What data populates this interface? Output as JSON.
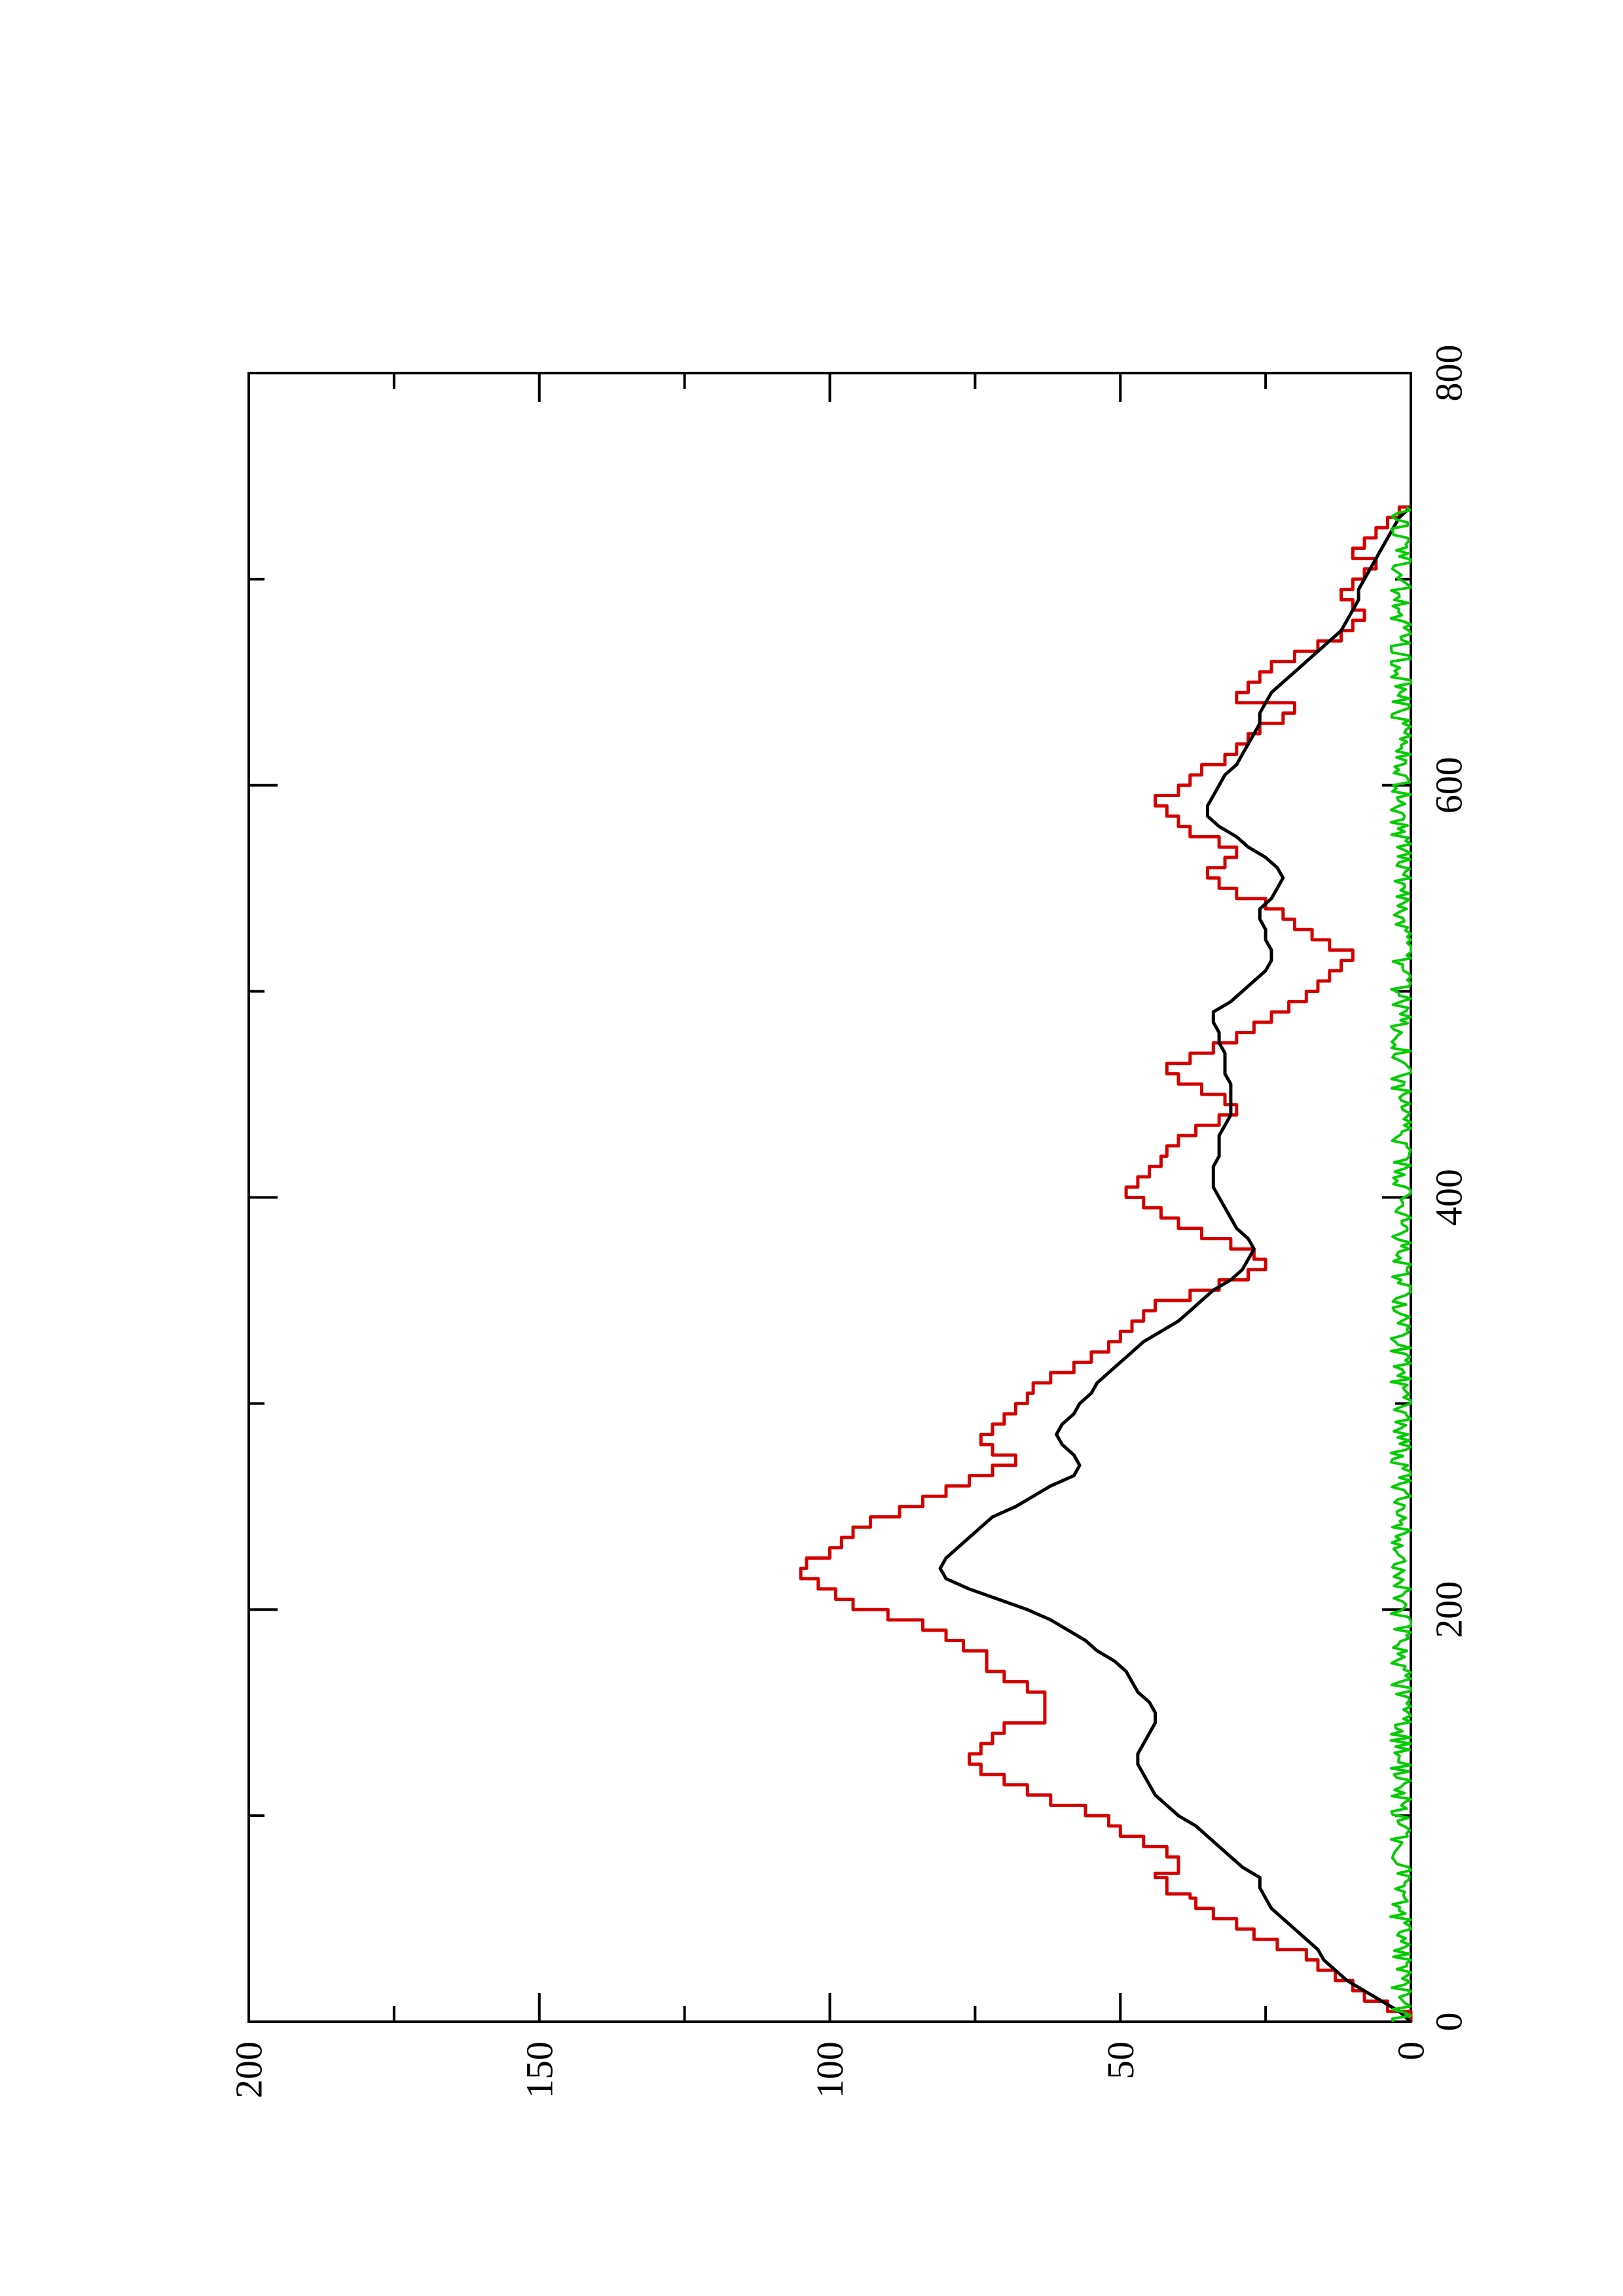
{
  "chart_data": {
    "type": "line",
    "title": "",
    "xlabel": "",
    "ylabel": "",
    "orientation": "rotated-90-ccw",
    "xlim": [
      0,
      800
    ],
    "ylim": [
      0,
      200
    ],
    "x_ticks": [
      0,
      200,
      400,
      600,
      800
    ],
    "x_tick_labels": [
      "0",
      "200",
      "400",
      "600",
      "800"
    ],
    "x_minor_ticks": [
      100,
      300,
      500,
      700
    ],
    "y_ticks": [
      0,
      50,
      100,
      150,
      200
    ],
    "y_tick_labels": [
      "0",
      "50",
      "100",
      "150",
      "200"
    ],
    "y_minor_ticks": [
      25,
      75,
      125,
      175
    ],
    "grid": false,
    "legend": "none",
    "series": [
      {
        "color": "#d40000",
        "style": "step",
        "points": [
          [
            0,
            0
          ],
          [
            5,
            4
          ],
          [
            10,
            8
          ],
          [
            15,
            10
          ],
          [
            20,
            13
          ],
          [
            25,
            16
          ],
          [
            30,
            18
          ],
          [
            35,
            23
          ],
          [
            40,
            27
          ],
          [
            45,
            30
          ],
          [
            50,
            34
          ],
          [
            55,
            37
          ],
          [
            60,
            38
          ],
          [
            62,
            42
          ],
          [
            70,
            44
          ],
          [
            72,
            40
          ],
          [
            80,
            42
          ],
          [
            85,
            46
          ],
          [
            90,
            50
          ],
          [
            95,
            52
          ],
          [
            100,
            56
          ],
          [
            105,
            62
          ],
          [
            110,
            66
          ],
          [
            115,
            70
          ],
          [
            120,
            74
          ],
          [
            125,
            76
          ],
          [
            130,
            74
          ],
          [
            135,
            72
          ],
          [
            140,
            70
          ],
          [
            145,
            63
          ],
          [
            150,
            63
          ],
          [
            155,
            63
          ],
          [
            160,
            66
          ],
          [
            165,
            70
          ],
          [
            170,
            73
          ],
          [
            175,
            73
          ],
          [
            180,
            77
          ],
          [
            185,
            80
          ],
          [
            190,
            84
          ],
          [
            195,
            90
          ],
          [
            200,
            96
          ],
          [
            205,
            99
          ],
          [
            210,
            102
          ],
          [
            215,
            105
          ],
          [
            220,
            104
          ],
          [
            225,
            100
          ],
          [
            230,
            98
          ],
          [
            235,
            96
          ],
          [
            240,
            93
          ],
          [
            245,
            88
          ],
          [
            250,
            84
          ],
          [
            255,
            80
          ],
          [
            260,
            76
          ],
          [
            265,
            72
          ],
          [
            270,
            68
          ],
          [
            275,
            72
          ],
          [
            280,
            74
          ],
          [
            285,
            72
          ],
          [
            290,
            70
          ],
          [
            295,
            68
          ],
          [
            300,
            66
          ],
          [
            305,
            65
          ],
          [
            310,
            62
          ],
          [
            315,
            58
          ],
          [
            320,
            55
          ],
          [
            325,
            52
          ],
          [
            330,
            50
          ],
          [
            335,
            48
          ],
          [
            340,
            46
          ],
          [
            345,
            44
          ],
          [
            350,
            38
          ],
          [
            355,
            33
          ],
          [
            360,
            28
          ],
          [
            365,
            25
          ],
          [
            370,
            27
          ],
          [
            375,
            31
          ],
          [
            380,
            36
          ],
          [
            385,
            40
          ],
          [
            390,
            43
          ],
          [
            395,
            46
          ],
          [
            400,
            49
          ],
          [
            405,
            47
          ],
          [
            410,
            45
          ],
          [
            415,
            43
          ],
          [
            420,
            42
          ],
          [
            425,
            40
          ],
          [
            430,
            37
          ],
          [
            435,
            33
          ],
          [
            440,
            30
          ],
          [
            445,
            32
          ],
          [
            450,
            36
          ],
          [
            455,
            40
          ],
          [
            460,
            42
          ],
          [
            465,
            38
          ],
          [
            470,
            34
          ],
          [
            475,
            30
          ],
          [
            480,
            27
          ],
          [
            485,
            24
          ],
          [
            490,
            21
          ],
          [
            495,
            18
          ],
          [
            500,
            16
          ],
          [
            505,
            14
          ],
          [
            510,
            12
          ],
          [
            515,
            10
          ],
          [
            520,
            14
          ],
          [
            525,
            17
          ],
          [
            530,
            20
          ],
          [
            535,
            22
          ],
          [
            540,
            25
          ],
          [
            545,
            30
          ],
          [
            550,
            33
          ],
          [
            555,
            35
          ],
          [
            560,
            32
          ],
          [
            565,
            30
          ],
          [
            570,
            33
          ],
          [
            575,
            38
          ],
          [
            580,
            40
          ],
          [
            585,
            42
          ],
          [
            590,
            44
          ],
          [
            595,
            40
          ],
          [
            600,
            38
          ],
          [
            605,
            36
          ],
          [
            610,
            32
          ],
          [
            615,
            30
          ],
          [
            620,
            28
          ],
          [
            625,
            26
          ],
          [
            630,
            22
          ],
          [
            635,
            20
          ],
          [
            640,
            30
          ],
          [
            645,
            28
          ],
          [
            650,
            26
          ],
          [
            655,
            24
          ],
          [
            660,
            20
          ],
          [
            665,
            16
          ],
          [
            670,
            12
          ],
          [
            675,
            10
          ],
          [
            680,
            8
          ],
          [
            685,
            10
          ],
          [
            690,
            12
          ],
          [
            695,
            10
          ],
          [
            700,
            8
          ],
          [
            705,
            6
          ],
          [
            710,
            10
          ],
          [
            715,
            8
          ],
          [
            720,
            6
          ],
          [
            725,
            4
          ],
          [
            730,
            2
          ],
          [
            735,
            0
          ]
        ]
      },
      {
        "color": "#000000",
        "style": "line",
        "points": [
          [
            0,
            0
          ],
          [
            5,
            2
          ],
          [
            10,
            5
          ],
          [
            15,
            8
          ],
          [
            20,
            11
          ],
          [
            25,
            13
          ],
          [
            30,
            15
          ],
          [
            35,
            16
          ],
          [
            40,
            18
          ],
          [
            45,
            20
          ],
          [
            50,
            22
          ],
          [
            55,
            24
          ],
          [
            60,
            25
          ],
          [
            65,
            26
          ],
          [
            70,
            26
          ],
          [
            75,
            29
          ],
          [
            80,
            31
          ],
          [
            85,
            33
          ],
          [
            90,
            35
          ],
          [
            95,
            37
          ],
          [
            100,
            40
          ],
          [
            105,
            42
          ],
          [
            110,
            44
          ],
          [
            115,
            45
          ],
          [
            120,
            46
          ],
          [
            125,
            47
          ],
          [
            130,
            47
          ],
          [
            135,
            46
          ],
          [
            140,
            45
          ],
          [
            145,
            44
          ],
          [
            150,
            44
          ],
          [
            155,
            45
          ],
          [
            160,
            47
          ],
          [
            165,
            48
          ],
          [
            170,
            49
          ],
          [
            175,
            51
          ],
          [
            180,
            54
          ],
          [
            185,
            56
          ],
          [
            190,
            59
          ],
          [
            195,
            62
          ],
          [
            200,
            66
          ],
          [
            205,
            71
          ],
          [
            210,
            76
          ],
          [
            215,
            80
          ],
          [
            220,
            81
          ],
          [
            225,
            80
          ],
          [
            230,
            78
          ],
          [
            235,
            76
          ],
          [
            240,
            74
          ],
          [
            245,
            72
          ],
          [
            250,
            68
          ],
          [
            255,
            65
          ],
          [
            260,
            62
          ],
          [
            265,
            58
          ],
          [
            270,
            57
          ],
          [
            275,
            58
          ],
          [
            280,
            60
          ],
          [
            285,
            61
          ],
          [
            290,
            60
          ],
          [
            295,
            58
          ],
          [
            300,
            57
          ],
          [
            305,
            55
          ],
          [
            310,
            54
          ],
          [
            315,
            52
          ],
          [
            320,
            50
          ],
          [
            325,
            48
          ],
          [
            330,
            46
          ],
          [
            335,
            43
          ],
          [
            340,
            40
          ],
          [
            345,
            38
          ],
          [
            350,
            36
          ],
          [
            355,
            34
          ],
          [
            360,
            31
          ],
          [
            365,
            29
          ],
          [
            370,
            28
          ],
          [
            375,
            27
          ],
          [
            380,
            28
          ],
          [
            385,
            30
          ],
          [
            390,
            31
          ],
          [
            395,
            32
          ],
          [
            400,
            33
          ],
          [
            405,
            34
          ],
          [
            410,
            34
          ],
          [
            415,
            34
          ],
          [
            420,
            33
          ],
          [
            425,
            33
          ],
          [
            430,
            33
          ],
          [
            435,
            32
          ],
          [
            440,
            31
          ],
          [
            445,
            31
          ],
          [
            450,
            31
          ],
          [
            455,
            31
          ],
          [
            460,
            32
          ],
          [
            465,
            32
          ],
          [
            470,
            32
          ],
          [
            475,
            33
          ],
          [
            480,
            33
          ],
          [
            485,
            34
          ],
          [
            490,
            34
          ],
          [
            495,
            31
          ],
          [
            500,
            29
          ],
          [
            505,
            27
          ],
          [
            510,
            25
          ],
          [
            515,
            24
          ],
          [
            520,
            24
          ],
          [
            525,
            25
          ],
          [
            530,
            25
          ],
          [
            535,
            26
          ],
          [
            540,
            26
          ],
          [
            545,
            24
          ],
          [
            550,
            23
          ],
          [
            555,
            22
          ],
          [
            560,
            23
          ],
          [
            565,
            25
          ],
          [
            570,
            28
          ],
          [
            575,
            30
          ],
          [
            580,
            33
          ],
          [
            585,
            35
          ],
          [
            590,
            35
          ],
          [
            595,
            34
          ],
          [
            600,
            33
          ],
          [
            605,
            32
          ],
          [
            610,
            30
          ],
          [
            615,
            29
          ],
          [
            620,
            28
          ],
          [
            625,
            27
          ],
          [
            630,
            26
          ],
          [
            635,
            26
          ],
          [
            640,
            25
          ],
          [
            645,
            24
          ],
          [
            650,
            22
          ],
          [
            655,
            20
          ],
          [
            660,
            18
          ],
          [
            665,
            16
          ],
          [
            670,
            14
          ],
          [
            675,
            12
          ],
          [
            680,
            11
          ],
          [
            685,
            10
          ],
          [
            690,
            9
          ],
          [
            695,
            9
          ],
          [
            700,
            8
          ],
          [
            705,
            7
          ],
          [
            710,
            6
          ],
          [
            715,
            5
          ],
          [
            720,
            4
          ],
          [
            725,
            3
          ],
          [
            730,
            2
          ],
          [
            735,
            0
          ]
        ]
      },
      {
        "color": "#00cc00",
        "style": "noisy",
        "baseline": 1.5,
        "amplitude": 2,
        "x_range": [
          0,
          735
        ]
      }
    ]
  }
}
